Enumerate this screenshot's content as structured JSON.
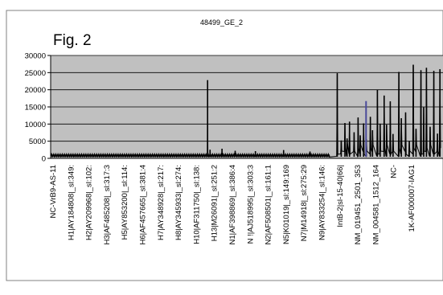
{
  "figure": {
    "label": "Fig. 2",
    "title": "48499_GE_2"
  },
  "colors": {
    "plot_bg": "#c0c0c0",
    "series": "#000000",
    "accent_series": "#4a4a9a",
    "gridline": "#000000"
  },
  "chart_data": {
    "type": "line",
    "title": "48499_GE_2",
    "xlabel": "",
    "ylabel": "",
    "ylim": [
      0,
      30000
    ],
    "yticks": [
      0,
      5000,
      10000,
      15000,
      20000,
      25000,
      30000
    ],
    "ytick_labels": [
      "0",
      "5000",
      "10000",
      "15000",
      "20000",
      "25000",
      "30000"
    ],
    "grid": true,
    "legend": "none",
    "x_tick_labels": [
      "NC-VrB9-AS-11",
      "H1|AY184808|_sl:349:",
      "H2|AY209968|_sl:102:",
      "H3|AF485208|_sl:317:3",
      "H5|AY853200|_sl:114:",
      "H6|AF457665|_sl:381:4",
      "H7|AY348928|_sl:217:",
      "H8|AY345933|_sl:274:",
      "H10|AF311750|_sl:138:",
      "H13|M26091|_sl:251:2",
      "N1|AF398869|_sl:386:4",
      "N !|AJ518995|_sl:303:3",
      "N2|AF508501|_sl:161:1",
      "N5|K01019|_sl:149:169",
      "N7|M14918|_sl:275:29",
      "N9|AY833254|_sl:146:",
      "IntB-2|sl-15-40|66|",
      "NM_019451_2501_353",
      "NM_004581_1512_164",
      "NC-",
      "1K-AF000007-IAG1"
    ],
    "baseline": {
      "start": 0,
      "end": 910,
      "period": 7,
      "values": [
        400,
        850,
        600,
        1500,
        700,
        300,
        1100
      ]
    },
    "spikes": [
      {
        "x": 512,
        "y": 22800
      },
      {
        "x": 520,
        "y": 2500
      },
      {
        "x": 559,
        "y": 2800
      },
      {
        "x": 602,
        "y": 2200
      },
      {
        "x": 668,
        "y": 2100
      },
      {
        "x": 760,
        "y": 2400
      },
      {
        "x": 846,
        "y": 2000
      },
      {
        "x": 935,
        "y": 24800
      },
      {
        "x": 948,
        "y": 5200
      },
      {
        "x": 960,
        "y": 10300
      },
      {
        "x": 967,
        "y": 5800
      },
      {
        "x": 975,
        "y": 10700
      },
      {
        "x": 990,
        "y": 7600
      },
      {
        "x": 1003,
        "y": 11900
      },
      {
        "x": 1010,
        "y": 6700
      },
      {
        "x": 1021,
        "y": 10200
      },
      {
        "x": 1030,
        "y": 5600
      },
      {
        "x": 1043,
        "y": 12100
      },
      {
        "x": 1050,
        "y": 8200
      },
      {
        "x": 1066,
        "y": 20000
      },
      {
        "x": 1075,
        "y": 10100
      },
      {
        "x": 1088,
        "y": 18300
      },
      {
        "x": 1096,
        "y": 9800
      },
      {
        "x": 1108,
        "y": 16600
      },
      {
        "x": 1117,
        "y": 7100
      },
      {
        "x": 1136,
        "y": 25200
      },
      {
        "x": 1144,
        "y": 11700
      },
      {
        "x": 1158,
        "y": 13400
      },
      {
        "x": 1170,
        "y": 5100
      },
      {
        "x": 1183,
        "y": 27300
      },
      {
        "x": 1192,
        "y": 8600
      },
      {
        "x": 1208,
        "y": 25700
      },
      {
        "x": 1217,
        "y": 14900
      },
      {
        "x": 1226,
        "y": 26400
      },
      {
        "x": 1238,
        "y": 9200
      },
      {
        "x": 1250,
        "y": 25500
      },
      {
        "x": 1262,
        "y": 7200
      },
      {
        "x": 1270,
        "y": 26000
      }
    ],
    "accent_spikes": [
      {
        "x": 1029,
        "y": 16700
      }
    ],
    "x_range": [
      0,
      1280
    ]
  }
}
